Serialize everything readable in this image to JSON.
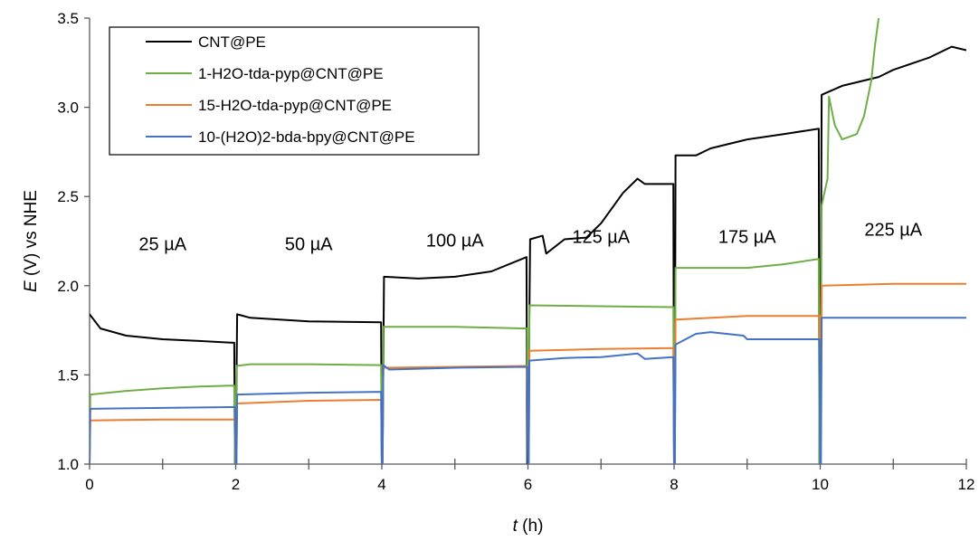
{
  "chart_data": {
    "type": "line",
    "xlabel": {
      "italic": "t",
      "rest": " (h)"
    },
    "ylabel": {
      "italic": "E",
      "rest": " (V) vs NHE"
    },
    "xlim": [
      0,
      12
    ],
    "ylim": [
      1.0,
      3.5
    ],
    "x_ticks": [
      "0",
      "2",
      "4",
      "6",
      "8",
      "10",
      "12"
    ],
    "y_ticks": [
      "1.0",
      "1.5",
      "2.0",
      "2.5",
      "3.0",
      "3.5"
    ],
    "grid": false,
    "legend_position": "top-left",
    "annotations": [
      {
        "text": "25 µA",
        "x": 1.0,
        "y": 2.2
      },
      {
        "text": "50 µA",
        "x": 3.0,
        "y": 2.2
      },
      {
        "text": "100 µA",
        "x": 5.0,
        "y": 2.22
      },
      {
        "text": "125 µA",
        "x": 7.0,
        "y": 2.24
      },
      {
        "text": "175 µA",
        "x": 9.0,
        "y": 2.24
      },
      {
        "text": "225 µA",
        "x": 11.0,
        "y": 2.28
      }
    ],
    "series": [
      {
        "name": "CNT@PE",
        "color": "#000000",
        "points": [
          [
            0.0,
            1.84
          ],
          [
            0.15,
            1.76
          ],
          [
            0.5,
            1.72
          ],
          [
            1.0,
            1.7
          ],
          [
            1.5,
            1.69
          ],
          [
            1.98,
            1.68
          ],
          [
            1.99,
            1.0
          ],
          [
            2.0,
            1.0
          ],
          [
            2.02,
            1.84
          ],
          [
            2.2,
            1.82
          ],
          [
            3.0,
            1.8
          ],
          [
            3.99,
            1.795
          ],
          [
            4.0,
            1.0
          ],
          [
            4.01,
            1.0
          ],
          [
            4.03,
            2.05
          ],
          [
            4.5,
            2.04
          ],
          [
            5.0,
            2.05
          ],
          [
            5.5,
            2.08
          ],
          [
            5.98,
            2.16
          ],
          [
            5.99,
            1.0
          ],
          [
            6.0,
            1.0
          ],
          [
            6.03,
            2.26
          ],
          [
            6.2,
            2.28
          ],
          [
            6.25,
            2.18
          ],
          [
            6.5,
            2.26
          ],
          [
            6.8,
            2.27
          ],
          [
            7.0,
            2.35
          ],
          [
            7.3,
            2.52
          ],
          [
            7.5,
            2.6
          ],
          [
            7.6,
            2.57
          ],
          [
            7.99,
            2.57
          ],
          [
            8.0,
            1.0
          ],
          [
            8.01,
            1.0
          ],
          [
            8.02,
            2.73
          ],
          [
            8.3,
            2.73
          ],
          [
            8.5,
            2.77
          ],
          [
            9.0,
            2.82
          ],
          [
            9.5,
            2.85
          ],
          [
            9.98,
            2.88
          ],
          [
            9.99,
            1.0
          ],
          [
            10.0,
            1.0
          ],
          [
            10.02,
            3.07
          ],
          [
            10.3,
            3.12
          ],
          [
            10.8,
            3.17
          ],
          [
            11.0,
            3.21
          ],
          [
            11.5,
            3.28
          ],
          [
            11.8,
            3.34
          ],
          [
            12.0,
            3.32
          ]
        ]
      },
      {
        "name": "1-H2O-tda-pyp@CNT@PE",
        "color": "#70ad47",
        "points": [
          [
            0.0,
            1.0
          ],
          [
            0.01,
            1.39
          ],
          [
            0.5,
            1.41
          ],
          [
            1.0,
            1.425
          ],
          [
            1.5,
            1.435
          ],
          [
            1.98,
            1.44
          ],
          [
            1.99,
            1.0
          ],
          [
            2.0,
            1.0
          ],
          [
            2.01,
            1.55
          ],
          [
            2.2,
            1.56
          ],
          [
            3.0,
            1.56
          ],
          [
            3.99,
            1.555
          ],
          [
            4.0,
            1.0
          ],
          [
            4.01,
            1.0
          ],
          [
            4.02,
            1.77
          ],
          [
            5.0,
            1.77
          ],
          [
            5.99,
            1.76
          ],
          [
            6.0,
            1.0
          ],
          [
            6.01,
            1.0
          ],
          [
            6.02,
            1.89
          ],
          [
            7.0,
            1.885
          ],
          [
            7.99,
            1.88
          ],
          [
            8.0,
            1.0
          ],
          [
            8.01,
            1.0
          ],
          [
            8.02,
            2.1
          ],
          [
            9.0,
            2.1
          ],
          [
            9.5,
            2.12
          ],
          [
            9.98,
            2.15
          ],
          [
            9.99,
            1.0
          ],
          [
            10.0,
            1.0
          ],
          [
            10.02,
            2.45
          ],
          [
            10.1,
            2.6
          ],
          [
            10.12,
            3.06
          ],
          [
            10.2,
            2.9
          ],
          [
            10.3,
            2.82
          ],
          [
            10.5,
            2.85
          ],
          [
            10.6,
            2.95
          ],
          [
            10.7,
            3.15
          ],
          [
            10.75,
            3.35
          ],
          [
            10.8,
            3.5
          ]
        ]
      },
      {
        "name": "15-H2O-tda-pyp@CNT@PE",
        "color": "#ed7d31",
        "points": [
          [
            0.0,
            1.0
          ],
          [
            0.01,
            1.245
          ],
          [
            1.0,
            1.25
          ],
          [
            1.99,
            1.25
          ],
          [
            2.0,
            1.0
          ],
          [
            2.01,
            1.0
          ],
          [
            2.02,
            1.34
          ],
          [
            3.0,
            1.355
          ],
          [
            3.99,
            1.36
          ],
          [
            4.0,
            1.0
          ],
          [
            4.01,
            1.0
          ],
          [
            4.02,
            1.54
          ],
          [
            5.0,
            1.545
          ],
          [
            5.99,
            1.55
          ],
          [
            6.0,
            1.0
          ],
          [
            6.01,
            1.0
          ],
          [
            6.02,
            1.635
          ],
          [
            7.0,
            1.645
          ],
          [
            7.99,
            1.65
          ],
          [
            8.0,
            1.0
          ],
          [
            8.01,
            1.0
          ],
          [
            8.02,
            1.81
          ],
          [
            9.0,
            1.83
          ],
          [
            9.99,
            1.83
          ],
          [
            10.0,
            1.22
          ],
          [
            10.01,
            1.22
          ],
          [
            10.02,
            2.0
          ],
          [
            11.0,
            2.01
          ],
          [
            12.0,
            2.01
          ]
        ]
      },
      {
        "name": "10-(H2O)2-bda-bpy@CNT@PE",
        "color": "#4472c4",
        "points": [
          [
            0.0,
            1.0
          ],
          [
            0.01,
            1.31
          ],
          [
            1.0,
            1.315
          ],
          [
            1.99,
            1.32
          ],
          [
            2.0,
            1.0
          ],
          [
            2.01,
            1.0
          ],
          [
            2.02,
            1.39
          ],
          [
            3.0,
            1.4
          ],
          [
            3.99,
            1.405
          ],
          [
            4.0,
            1.0
          ],
          [
            4.01,
            1.0
          ],
          [
            4.02,
            1.555
          ],
          [
            4.1,
            1.53
          ],
          [
            5.0,
            1.54
          ],
          [
            5.99,
            1.545
          ],
          [
            6.0,
            1.0
          ],
          [
            6.01,
            1.0
          ],
          [
            6.02,
            1.58
          ],
          [
            6.5,
            1.595
          ],
          [
            7.0,
            1.6
          ],
          [
            7.5,
            1.62
          ],
          [
            7.6,
            1.59
          ],
          [
            7.99,
            1.6
          ],
          [
            8.0,
            1.0
          ],
          [
            8.01,
            1.0
          ],
          [
            8.02,
            1.67
          ],
          [
            8.3,
            1.73
          ],
          [
            8.5,
            1.74
          ],
          [
            8.95,
            1.72
          ],
          [
            9.0,
            1.7
          ],
          [
            9.99,
            1.7
          ],
          [
            10.0,
            1.0
          ],
          [
            10.01,
            1.0
          ],
          [
            10.02,
            1.82
          ],
          [
            11.0,
            1.82
          ],
          [
            12.0,
            1.82
          ]
        ]
      }
    ]
  }
}
